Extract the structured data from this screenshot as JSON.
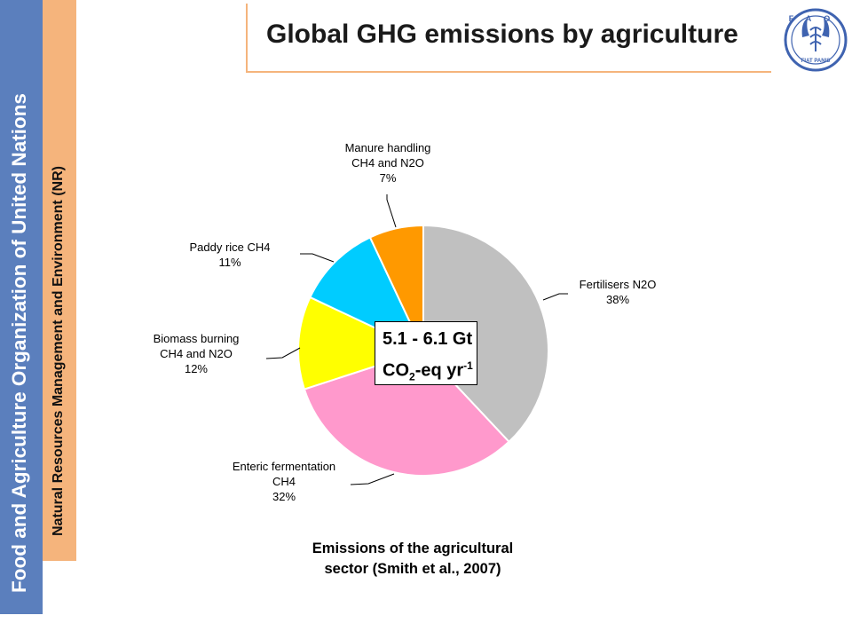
{
  "sidebar": {
    "org_name": "Food and Agriculture Organization of United Nations",
    "department": "Natural Resources Management and Environment (NR)"
  },
  "header": {
    "title": "Global GHG emissions by agriculture",
    "logo": {
      "icon": "fao-logo-icon",
      "letters": "FAO",
      "motto": "FIAT PANIS"
    }
  },
  "center_box": {
    "line1": "5.1 - 6.1 Gt",
    "line2_prefix": "CO",
    "line2_sub": "2",
    "line2_mid": "-eq yr",
    "line2_sup": "-1"
  },
  "chart_data": {
    "type": "pie",
    "start_angle_deg": 0,
    "direction": "clockwise",
    "slices": [
      {
        "lines": [
          "Fertilisers N2O",
          "38%"
        ],
        "value": 38,
        "color": "#c0c0c0"
      },
      {
        "lines": [
          "Enteric fermentation",
          "CH4",
          "32%"
        ],
        "value": 32,
        "color": "#ff99cc"
      },
      {
        "lines": [
          "Biomass burning",
          "CH4 and N2O",
          "12%"
        ],
        "value": 12,
        "color": "#ffff00"
      },
      {
        "lines": [
          "Paddy rice CH4",
          "11%"
        ],
        "value": 11,
        "color": "#00ccff"
      },
      {
        "lines": [
          "Manure handling",
          "CH4 and N2O",
          "7%"
        ],
        "value": 7,
        "color": "#ff9900"
      }
    ],
    "caption": [
      "Emissions of the agricultural",
      "sector (Smith et al., 2007)"
    ]
  }
}
